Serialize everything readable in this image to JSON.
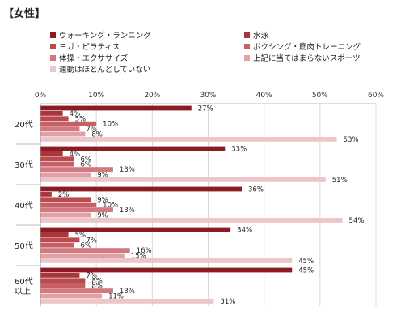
{
  "chart_data": {
    "type": "bar",
    "orientation": "horizontal",
    "title": "【女性】",
    "categories": [
      "20代",
      "30代",
      "40代",
      "50代",
      "60代\n以上"
    ],
    "xlim": [
      0,
      60
    ],
    "xticks": [
      "0%",
      "10%",
      "20%",
      "30%",
      "40%",
      "50%",
      "60%"
    ],
    "value_suffix": "%",
    "series": [
      {
        "name": "ウォーキング・ランニング",
        "color": "#8b1c24",
        "values": [
          27,
          33,
          36,
          34,
          45
        ]
      },
      {
        "name": "水泳",
        "color": "#a8363c",
        "values": [
          4,
          4,
          2,
          5,
          7
        ]
      },
      {
        "name": "ヨガ・ピラティス",
        "color": "#b84a50",
        "values": [
          5,
          6,
          9,
          7,
          8
        ]
      },
      {
        "name": "ボクシング・筋肉トレーニング",
        "color": "#c76066",
        "values": [
          10,
          6,
          10,
          6,
          8
        ]
      },
      {
        "name": "体操・エクササイズ",
        "color": "#d3797e",
        "values": [
          7,
          13,
          13,
          16,
          13
        ]
      },
      {
        "name": "上記に当てはまらないスポーツ",
        "color": "#e0a0a4",
        "values": [
          8,
          9,
          9,
          15,
          11
        ]
      },
      {
        "name": "運動はほとんどしていない",
        "color": "#ecc6c8",
        "values": [
          53,
          51,
          54,
          45,
          31
        ]
      }
    ]
  }
}
